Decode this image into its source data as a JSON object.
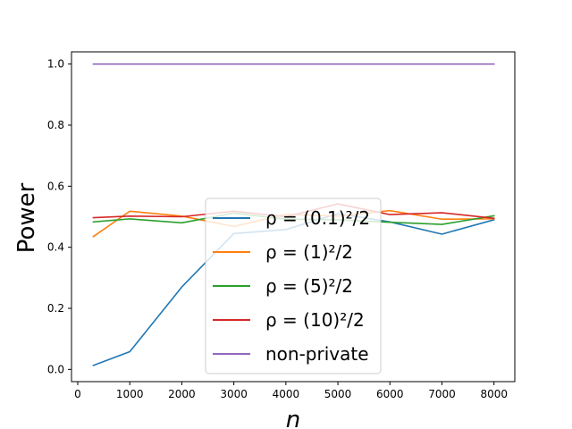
{
  "chart_data": {
    "type": "line",
    "xlabel": "n",
    "ylabel": "Power",
    "xlim": [
      -120,
      8400
    ],
    "ylim": [
      -0.04,
      1.04
    ],
    "xticks": [
      0,
      1000,
      2000,
      3000,
      4000,
      5000,
      6000,
      7000,
      8000
    ],
    "yticks": [
      0.0,
      0.2,
      0.4,
      0.6,
      0.8,
      1.0
    ],
    "xtick_labels": [
      "0",
      "1000",
      "2000",
      "3000",
      "4000",
      "5000",
      "6000",
      "7000",
      "8000"
    ],
    "ytick_labels": [
      "0.0",
      "0.2",
      "0.4",
      "0.6",
      "0.8",
      "1.0"
    ],
    "x": [
      300,
      1000,
      2000,
      3000,
      4000,
      5000,
      6000,
      7000,
      8000
    ],
    "legend_position": "center",
    "series": [
      {
        "name": "ρ = (0.1)²/2",
        "color": "#1f77b4",
        "values": [
          0.013,
          0.058,
          0.27,
          0.445,
          0.458,
          0.51,
          0.483,
          0.443,
          0.49
        ]
      },
      {
        "name": "ρ = (1)²/2",
        "color": "#ff7f0e",
        "values": [
          0.435,
          0.518,
          0.502,
          0.468,
          0.508,
          0.502,
          0.52,
          0.492,
          0.493
        ]
      },
      {
        "name": "ρ = (5)²/2",
        "color": "#2ca02c",
        "values": [
          0.483,
          0.493,
          0.48,
          0.512,
          0.492,
          0.49,
          0.482,
          0.475,
          0.503
        ]
      },
      {
        "name": "ρ = (10)²/2",
        "color": "#d62728",
        "values": [
          0.497,
          0.502,
          0.5,
          0.518,
          0.5,
          0.542,
          0.507,
          0.513,
          0.495
        ]
      },
      {
        "name": "non-private",
        "color": "#9467bd",
        "values": [
          1.0,
          1.0,
          1.0,
          1.0,
          1.0,
          1.0,
          1.0,
          1.0,
          1.0
        ]
      }
    ]
  }
}
